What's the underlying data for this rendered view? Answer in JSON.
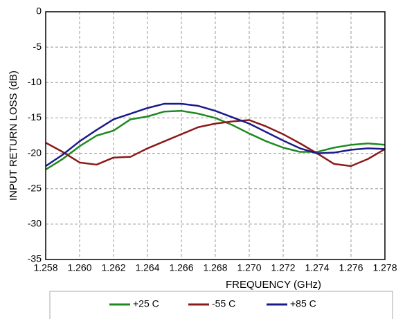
{
  "chart_data": {
    "type": "line",
    "xlabel": "FREQUENCY (GHz)",
    "ylabel": "INPUT RETURN LOSS (dB)",
    "x": [
      1.258,
      1.259,
      1.26,
      1.261,
      1.262,
      1.263,
      1.264,
      1.265,
      1.266,
      1.267,
      1.268,
      1.269,
      1.27,
      1.271,
      1.272,
      1.273,
      1.274,
      1.275,
      1.276,
      1.277,
      1.278
    ],
    "series": [
      {
        "name": "+25 C",
        "color": "#1e8a1e",
        "values": [
          -22.3,
          -20.8,
          -19.0,
          -17.5,
          -16.8,
          -15.2,
          -14.8,
          -14.1,
          -14.0,
          -14.4,
          -15.0,
          -16.0,
          -17.2,
          -18.3,
          -19.2,
          -19.8,
          -19.8,
          -19.2,
          -18.8,
          -18.6,
          -18.8
        ]
      },
      {
        "name": "-55 C",
        "color": "#8b1a1a",
        "values": [
          -18.5,
          -19.8,
          -21.3,
          -21.6,
          -20.6,
          -20.5,
          -19.3,
          -18.3,
          -17.3,
          -16.3,
          -15.8,
          -15.5,
          -15.3,
          -16.2,
          -17.3,
          -18.6,
          -20.0,
          -21.5,
          -21.8,
          -20.8,
          -19.4
        ]
      },
      {
        "name": "+85 C",
        "color": "#1a1a8b",
        "values": [
          -21.8,
          -20.2,
          -18.3,
          -16.7,
          -15.2,
          -14.4,
          -13.6,
          -13.0,
          -13.0,
          -13.3,
          -14.0,
          -14.9,
          -15.8,
          -17.0,
          -18.2,
          -19.3,
          -20.0,
          -19.9,
          -19.5,
          -19.3,
          -19.4
        ]
      }
    ],
    "xlim": [
      1.258,
      1.278
    ],
    "xticks": [
      1.258,
      {
        "value": 1.26,
        "label": "1.260"
      },
      1.262,
      1.264,
      1.266,
      1.268,
      {
        "value": 1.27,
        "label": "1.270"
      },
      1.272,
      1.274,
      1.276,
      1.278
    ],
    "ylim": [
      -35,
      0
    ],
    "yticks": [
      0,
      -5,
      -10,
      -15,
      -20,
      -25,
      -30,
      -35
    ],
    "grid": true
  }
}
